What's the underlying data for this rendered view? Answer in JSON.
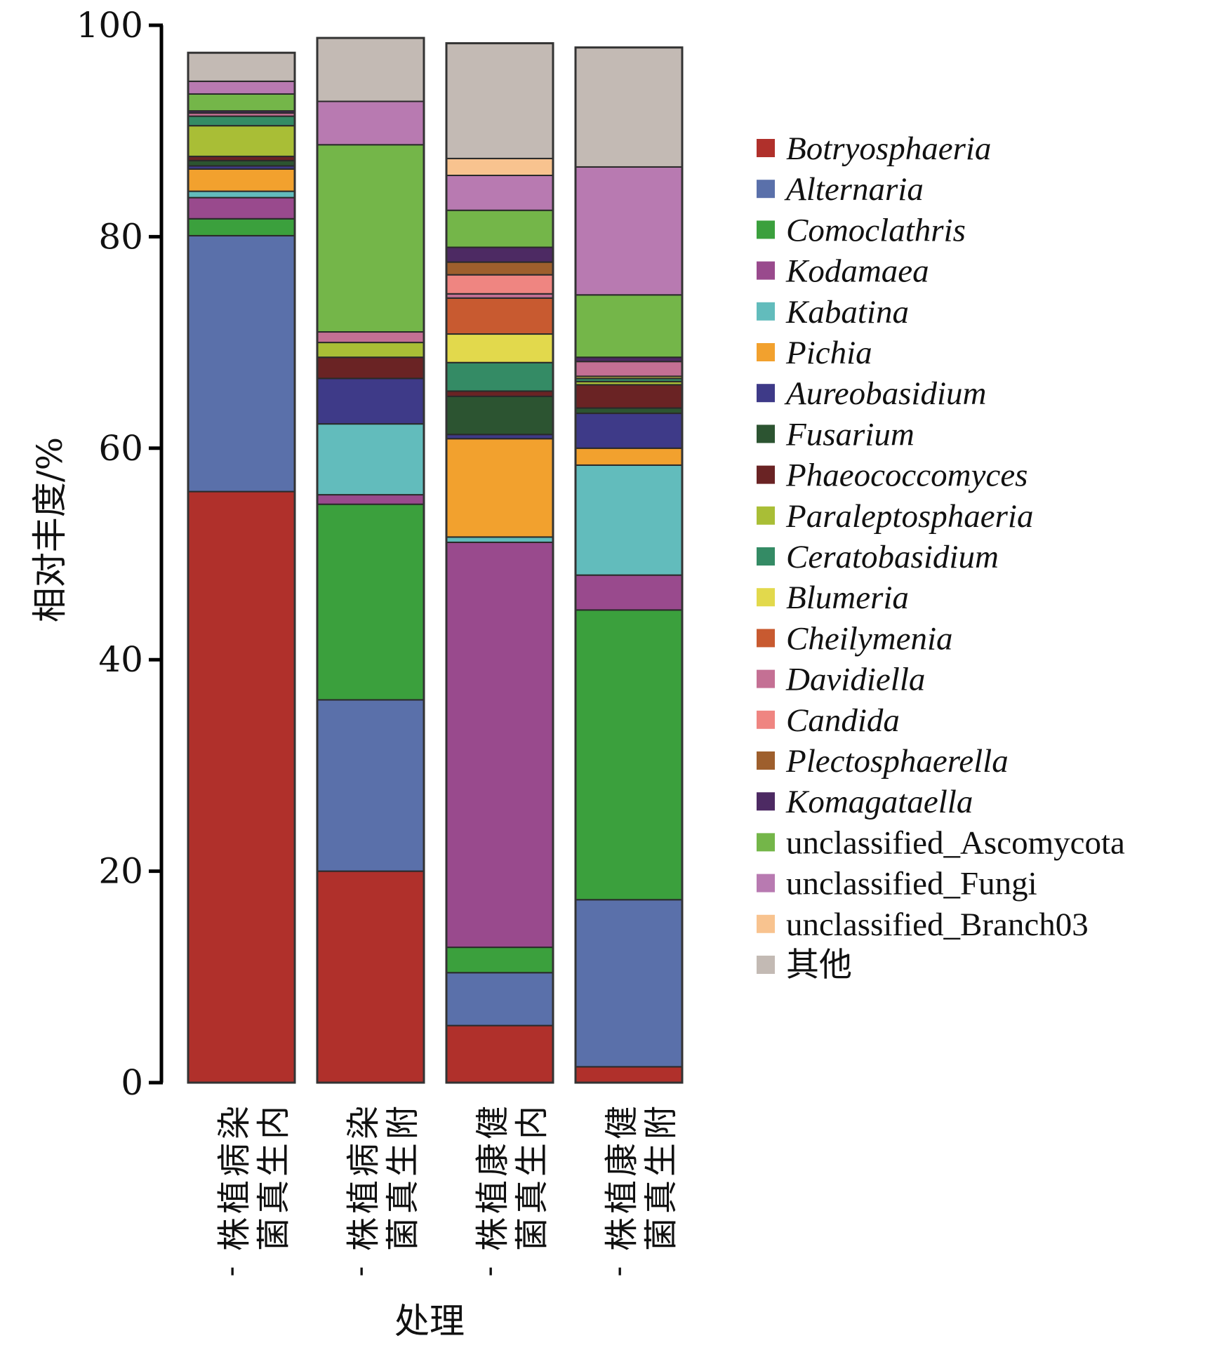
{
  "chart_data": {
    "type": "bar",
    "stacked": true,
    "title": "",
    "ylabel": "相对丰度/%",
    "xlabel": "处理",
    "ylim": [
      0,
      100
    ],
    "yticks": [
      "0",
      "20",
      "40",
      "60",
      "80",
      "100"
    ],
    "categories": [
      [
        "染病植株-",
        "内生真菌"
      ],
      [
        "染病植株-",
        "附生真菌"
      ],
      [
        "健康植株-",
        "内生真菌"
      ],
      [
        "健康植株-",
        "附生真菌"
      ]
    ],
    "legend_position": "right",
    "series": [
      {
        "name": "Botryosphaeria",
        "italic": true,
        "color": "#B0302B",
        "values": [
          55.9,
          20.0,
          5.4,
          1.5
        ]
      },
      {
        "name": "Alternaria",
        "italic": true,
        "color": "#5A70AA",
        "values": [
          24.2,
          16.2,
          5.0,
          15.8
        ]
      },
      {
        "name": "Comoclathris",
        "italic": true,
        "color": "#3BA03D",
        "values": [
          1.6,
          18.5,
          2.4,
          27.4
        ]
      },
      {
        "name": "Kodamaea",
        "italic": true,
        "color": "#994A8D",
        "values": [
          2.0,
          0.9,
          38.3,
          3.3
        ]
      },
      {
        "name": "Kabatina",
        "italic": true,
        "color": "#62BCBC",
        "values": [
          0.6,
          6.7,
          0.5,
          10.4
        ]
      },
      {
        "name": "Pichia",
        "italic": true,
        "color": "#F2A12E",
        "values": [
          2.1,
          0,
          9.3,
          1.6
        ]
      },
      {
        "name": "Aureobasidium",
        "italic": true,
        "color": "#3E3A88",
        "values": [
          0.3,
          4.3,
          0.4,
          3.3
        ]
      },
      {
        "name": "Fusarium",
        "italic": true,
        "color": "#2C5431",
        "values": [
          0.5,
          0,
          3.6,
          0.5
        ]
      },
      {
        "name": "Phaeococcomyces",
        "italic": true,
        "color": "#6A2324",
        "values": [
          0.4,
          2.0,
          0.5,
          2.2
        ]
      },
      {
        "name": "Paraleptosphaeria",
        "italic": true,
        "color": "#A9BE36",
        "values": [
          2.9,
          1.4,
          0,
          0.3
        ]
      },
      {
        "name": "Ceratobasidium",
        "italic": true,
        "color": "#348B65",
        "values": [
          0.9,
          0,
          2.7,
          0.3
        ]
      },
      {
        "name": "Blumeria",
        "italic": true,
        "color": "#E2D94C",
        "values": [
          0,
          0,
          2.7,
          0.2
        ]
      },
      {
        "name": "Cheilymenia",
        "italic": true,
        "color": "#C85A30",
        "values": [
          0,
          0,
          3.4,
          0
        ]
      },
      {
        "name": "Davidiella",
        "italic": true,
        "color": "#C47094",
        "values": [
          0.3,
          1.0,
          0.4,
          1.4
        ]
      },
      {
        "name": "Candida",
        "italic": true,
        "color": "#EF8581",
        "values": [
          0,
          0,
          1.8,
          0
        ]
      },
      {
        "name": "Plectosphaerella",
        "italic": true,
        "color": "#9E5F2D",
        "values": [
          0,
          0,
          1.2,
          0
        ]
      },
      {
        "name": "Komagataella",
        "italic": true,
        "color": "#4D2A63",
        "values": [
          0.2,
          0,
          1.4,
          0.4
        ]
      },
      {
        "name": "unclassified_Ascomycota",
        "italic": false,
        "color": "#74B649",
        "values": [
          1.6,
          17.7,
          3.5,
          5.9
        ]
      },
      {
        "name": "unclassified_Fungi",
        "italic": false,
        "color": "#B87AB1",
        "values": [
          1.2,
          4.1,
          3.3,
          12.1
        ]
      },
      {
        "name": "unclassified_Branch03",
        "italic": false,
        "color": "#F8C38F",
        "values": [
          0,
          0,
          1.6,
          0
        ]
      },
      {
        "name": "其他",
        "italic": false,
        "color": "#C3BAB4",
        "values": [
          2.7,
          6.0,
          10.9,
          11.3
        ]
      }
    ]
  }
}
